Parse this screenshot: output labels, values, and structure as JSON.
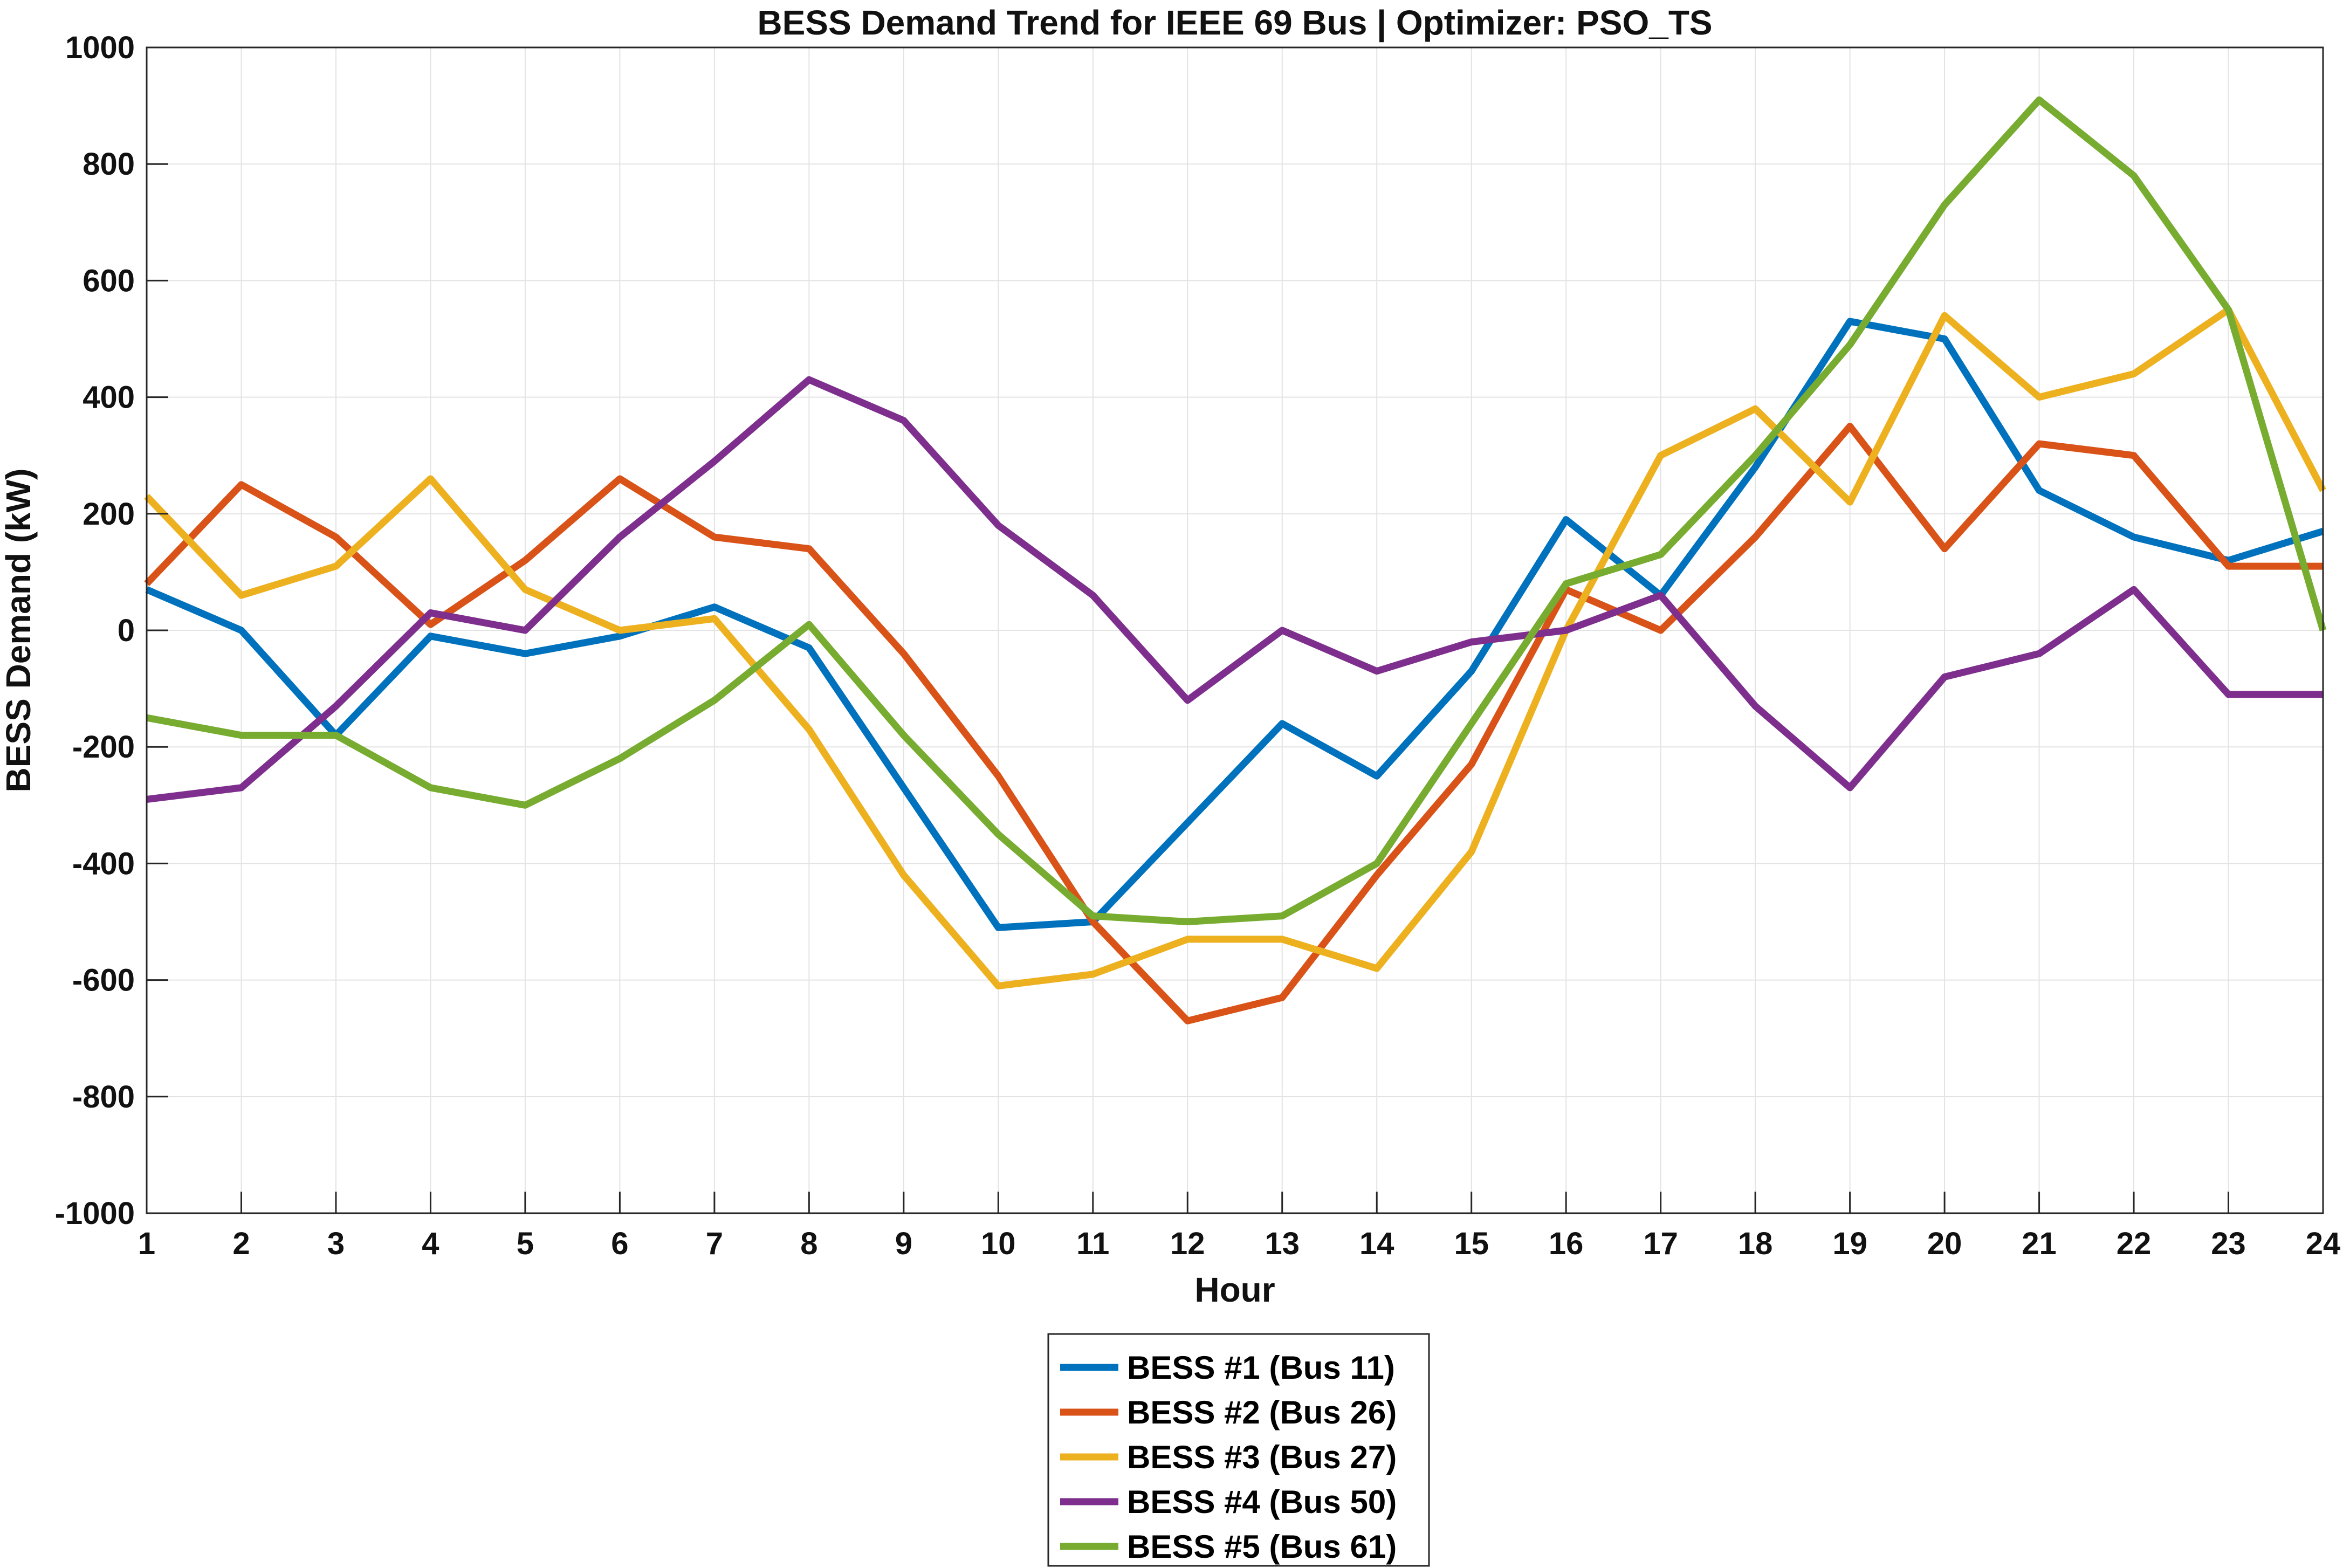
{
  "chart_data": {
    "type": "line",
    "title": "BESS Demand Trend for IEEE 69 Bus | Optimizer: PSO_TS",
    "xlabel": "Hour",
    "ylabel": "BESS Demand (kW)",
    "xlim": [
      1,
      24
    ],
    "ylim": [
      -1000,
      1000
    ],
    "xticks": [
      1,
      2,
      3,
      4,
      5,
      6,
      7,
      8,
      9,
      10,
      11,
      12,
      13,
      14,
      15,
      16,
      17,
      18,
      19,
      20,
      21,
      22,
      23,
      24
    ],
    "yticks": [
      -1000,
      -800,
      -600,
      -400,
      -200,
      0,
      200,
      400,
      600,
      800,
      1000
    ],
    "grid": true,
    "legend_position": "bottom-outside",
    "x": [
      1,
      2,
      3,
      4,
      5,
      6,
      7,
      8,
      9,
      10,
      11,
      12,
      13,
      14,
      15,
      16,
      17,
      18,
      19,
      20,
      21,
      22,
      23,
      24
    ],
    "series": [
      {
        "name": "BESS #1 (Bus 11)",
        "color": "#0072BD",
        "values": [
          70,
          0,
          -180,
          -10,
          -40,
          -10,
          40,
          -30,
          -270,
          -510,
          -500,
          -330,
          -160,
          -250,
          -70,
          190,
          60,
          280,
          530,
          500,
          240,
          160,
          120,
          170
        ]
      },
      {
        "name": "BESS #2 (Bus 26)",
        "color": "#D95319",
        "values": [
          80,
          250,
          160,
          10,
          120,
          260,
          160,
          140,
          -40,
          -250,
          -500,
          -670,
          -630,
          -420,
          -230,
          70,
          0,
          160,
          350,
          140,
          320,
          300,
          110,
          110
        ]
      },
      {
        "name": "BESS #3 (Bus 27)",
        "color": "#EDB120",
        "values": [
          230,
          60,
          110,
          260,
          70,
          0,
          20,
          -170,
          -420,
          -610,
          -590,
          -530,
          -530,
          -580,
          -380,
          0,
          300,
          380,
          220,
          540,
          400,
          440,
          550,
          240
        ]
      },
      {
        "name": "BESS #4 (Bus 50)",
        "color": "#7E2F8E",
        "values": [
          -290,
          -270,
          -130,
          30,
          0,
          160,
          290,
          430,
          360,
          180,
          60,
          -120,
          0,
          -70,
          -20,
          0,
          60,
          -130,
          -270,
          -80,
          -40,
          70,
          -110,
          -110
        ]
      },
      {
        "name": "BESS #5 (Bus 61)",
        "color": "#77AC30",
        "values": [
          -150,
          -180,
          -180,
          -270,
          -300,
          -220,
          -120,
          10,
          -180,
          -350,
          -490,
          -500,
          -490,
          -400,
          -160,
          80,
          130,
          300,
          490,
          730,
          910,
          780,
          550,
          0
        ]
      }
    ]
  }
}
